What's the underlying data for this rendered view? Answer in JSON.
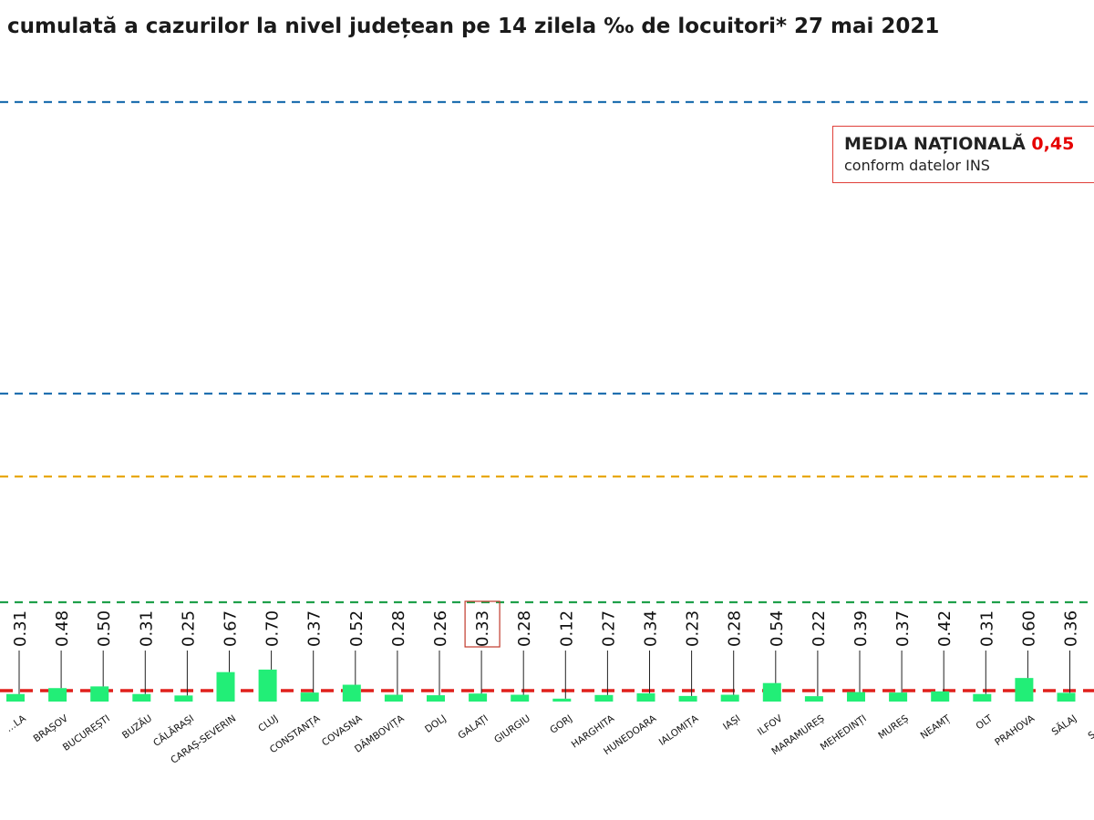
{
  "title": "cumulată a cazurilor la nivel județean pe 14 zilela ‰ de locuitori*  27 mai 2021",
  "legend": {
    "label": "MEDIA NAȚIONALĂ",
    "value": "0,45",
    "note": "conform datelor INS"
  },
  "chart_data": {
    "type": "bar",
    "categories": [
      "…LA",
      "BRAȘOV",
      "BUCUREȘTI",
      "BUZĂU",
      "CĂLĂRAȘI",
      "CARAȘ-SEVERIN",
      "CLUJ",
      "CONSTANȚA",
      "COVASNA",
      "DÂMBOVIȚA",
      "DOLJ",
      "GALAȚI",
      "GIURGIU",
      "GORJ",
      "HARGHITA",
      "HUNEDOARA",
      "IALOMIȚA",
      "IAȘI",
      "ILFOV",
      "MARAMUREȘ",
      "MEHEDINȚI",
      "MUREȘ",
      "NEAMȚ",
      "OLT",
      "PRAHOVA",
      "SĂLAJ",
      "SATU…"
    ],
    "values": [
      0.31,
      0.48,
      0.5,
      0.31,
      0.25,
      0.67,
      0.7,
      0.37,
      0.52,
      0.28,
      0.26,
      0.33,
      0.28,
      0.12,
      0.27,
      0.34,
      0.23,
      0.28,
      0.54,
      0.22,
      0.39,
      0.37,
      0.42,
      0.31,
      0.6,
      0.36,
      null
    ],
    "value_labels": [
      "0.31",
      "0.48",
      "0.50",
      "0.31",
      "0.25",
      "0.67",
      "0.70",
      "0.37",
      "0.52",
      "0.28",
      "0.26",
      "0.33",
      "0.28",
      "0.12",
      "0.27",
      "0.34",
      "0.23",
      "0.28",
      "0.54",
      "0.22",
      "0.39",
      "0.37",
      "0.42",
      "0.31",
      "0.60",
      "0.36",
      ""
    ],
    "highlighted_category": "GALAȚI",
    "reference_lines": [
      {
        "value": 0.45,
        "color": "#e0201c"
      },
      {
        "value": 1.5,
        "color": "#1fa04a"
      },
      {
        "value": 3.0,
        "color": "#e8a700"
      },
      {
        "value": 4.0,
        "color": "#2070b0"
      },
      {
        "value": 7.5,
        "color": "#2070b0"
      }
    ],
    "bar_color": "#22ee77",
    "ylim": [
      0,
      8
    ]
  }
}
